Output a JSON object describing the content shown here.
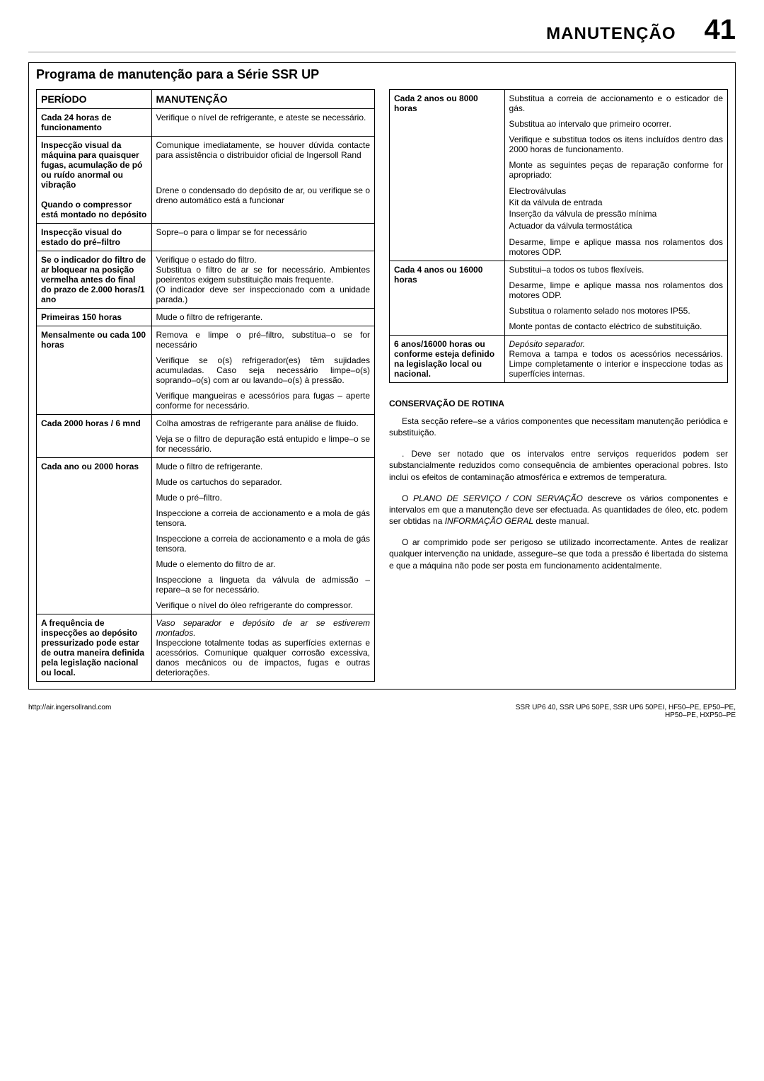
{
  "header": {
    "title": "MANUTENÇÃO",
    "page": "41"
  },
  "program_title": "Programa de manutenção para a Série SSR UP",
  "table_headers": {
    "period": "PERÍODO",
    "maint": "MANUTENÇÃO"
  },
  "left_rows": [
    {
      "period": "Cada 24 horas de funcionamento",
      "items": [
        "Verifique o nível de refrigerante, e ateste se necessário."
      ]
    },
    {
      "period": "Inspecção visual da máquina para quaisquer fugas, acumulação de pó ou ruído anormal ou vibração",
      "items": [
        "Comunique imediatamente, se houver dúvida contacte para assistência o distribuidor oficial de Ingersoll Rand"
      ],
      "merge_next": true
    },
    {
      "period": "Quando o compressor está montado no depósito",
      "items": [
        "Drene o condensado do depósito de ar, ou verifique se o dreno automático está a funcionar"
      ]
    },
    {
      "period": "Inspecção visual do estado do pré–filtro",
      "items": [
        "Sopre–o para o limpar se for necessário"
      ]
    },
    {
      "period": "Se o indicador do filtro de ar bloquear na posição vermelha antes do final do prazo de 2.000 horas/1 ano",
      "items": [
        "Verifique o estado do filtro.\nSubstitua o filtro de ar se for necessário. Ambientes poeirentos exigem substituição mais frequente.\n(O indicador deve ser inspeccionado com a unidade parada.)"
      ]
    },
    {
      "period": "Primeiras 150 horas",
      "items": [
        "Mude o filtro de refrigerante."
      ]
    },
    {
      "period": "Mensalmente ou cada 100 horas",
      "items": [
        "Remova e limpe o pré–filtro, substitua–o se for necessário",
        "Verifique se o(s) refrigerador(es) têm sujidades acumuladas. Caso seja necessário limpe–o(s) soprando–o(s) com ar ou lavando–o(s) à pressão.",
        "Verifique mangueiras e acessórios para fugas – aperte conforme for necessário."
      ]
    },
    {
      "period": "Cada 2000 horas / 6 mnd",
      "items": [
        "Colha amostras de refrigerante para análise de fluido.",
        "Veja se o filtro de depuração está entupido e limpe–o se for necessário."
      ]
    },
    {
      "period": "Cada ano ou 2000 horas",
      "items": [
        "Mude o filtro de refrigerante.",
        "Mude os cartuchos do separador.",
        "Mude o pré–filtro.",
        "Inspeccione a correia de accionamento e a mola de gás tensora.",
        "Inspeccione a correia de accionamento e a mola de gás tensora.",
        "Mude o elemento do filtro de ar.",
        "Inspeccione a lingueta da válvula de admissão – repare–a se for necessário.",
        "Verifique o nível do óleo refrigerante do compressor."
      ]
    },
    {
      "period": "A frequência de inspecções ao depósito pressurizado pode estar de outra maneira definida pela legislação nacional ou local.",
      "items": [
        "<span class='italic'>Vaso separador e depósito de ar se estiverem montados.</span>\nInspeccione totalmente todas as superfícies externas e acessórios. Comunique qualquer corrosão excessiva, danos mecânicos ou de impactos, fugas e outras deteriorações."
      ]
    }
  ],
  "right_rows": [
    {
      "period": "Cada 2 anos ou 8000 horas",
      "items": [
        "Substitua a correia de accionamento e o esticador de gás.",
        "Substitua ao intervalo que primeiro ocorrer.",
        "Verifique e substitua todos os itens incluídos dentro das 2000 horas de funcionamento.",
        "Monte as seguintes peças de reparação conforme for apropriado:",
        "__LIST__Electroválvulas|Kit da válvula de entrada|Inserção da válvula de pressão mínima|Actuador da válvula termostática",
        "Desarme, limpe e aplique massa nos rolamentos dos motores ODP."
      ]
    },
    {
      "period": "Cada 4 anos ou 16000 horas",
      "items": [
        "Substitui–a todos os tubos flexíveis.",
        "Desarme, limpe e aplique massa nos rolamentos dos motores ODP.",
        "Substitua o rolamento selado nos motores IP55.",
        "Monte pontas de contacto eléctrico de substituição."
      ]
    },
    {
      "period": "6 anos/16000 horas ou conforme esteja definido na legislação local ou nacional.",
      "items": [
        "<span class='italic'>Depósito separador.</span>\nRemova a tampa e todos os acessórios necessários. Limpe completamente o interior e inspeccione todas as superfícies internas."
      ]
    }
  ],
  "section_heading": "CONSERVAÇÃO DE ROTINA",
  "paras": [
    "Esta secção refere–se a vários componentes que necessitam manutenção periódica e substituição.",
    ". Deve ser notado que os intervalos entre serviços requeridos podem ser substancialmente reduzidos como consequência de ambientes operacional pobres. Isto inclui os efeitos de contaminação atmosférica e extremos de temperatura.",
    "O <span class='italic'>PLANO DE SERVIÇO / CON SERVAÇÃO</span> descreve os vários componentes e intervalos em que a manutenção deve ser efectuada. As quantidades de óleo, etc. podem ser obtidas na <span class='italic'>INFORMAÇÃO GERAL</span> deste manual.",
    "O ar comprimido pode ser perigoso se utilizado incorrectamente. Antes de realizar qualquer intervenção na unidade, assegure–se que toda a pressão é libertada do sistema e que a máquina não pode ser posta em funcionamento acidentalmente."
  ],
  "footer": {
    "left": "http://air.ingersollrand.com",
    "right1": "SSR UP6 40, SSR UP6 50PE, SSR UP6 50PEI, HF50–PE, EP50–PE,",
    "right2": "HP50–PE, HXP50–PE"
  }
}
